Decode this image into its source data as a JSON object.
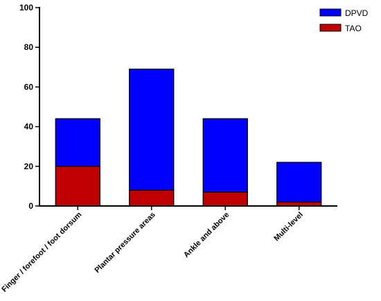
{
  "chart_data": {
    "type": "bar",
    "stacked": true,
    "title": "",
    "xlabel": "",
    "ylabel": "",
    "ylim": [
      0,
      100
    ],
    "yticks": [
      0,
      20,
      40,
      60,
      80,
      100
    ],
    "categories": [
      "Finger / forefoot / foot dorsum",
      "Plantar pressure areas",
      "Ankle and above",
      "Multi-level"
    ],
    "series": [
      {
        "name": "TAO",
        "color": "#c00000",
        "values": [
          20,
          8,
          7,
          2
        ]
      },
      {
        "name": "DPVD",
        "color": "#0000ff",
        "values": [
          24,
          61,
          37,
          20
        ]
      }
    ],
    "legend_order": [
      "DPVD",
      "TAO"
    ],
    "legend": "top-right",
    "grid": false
  }
}
